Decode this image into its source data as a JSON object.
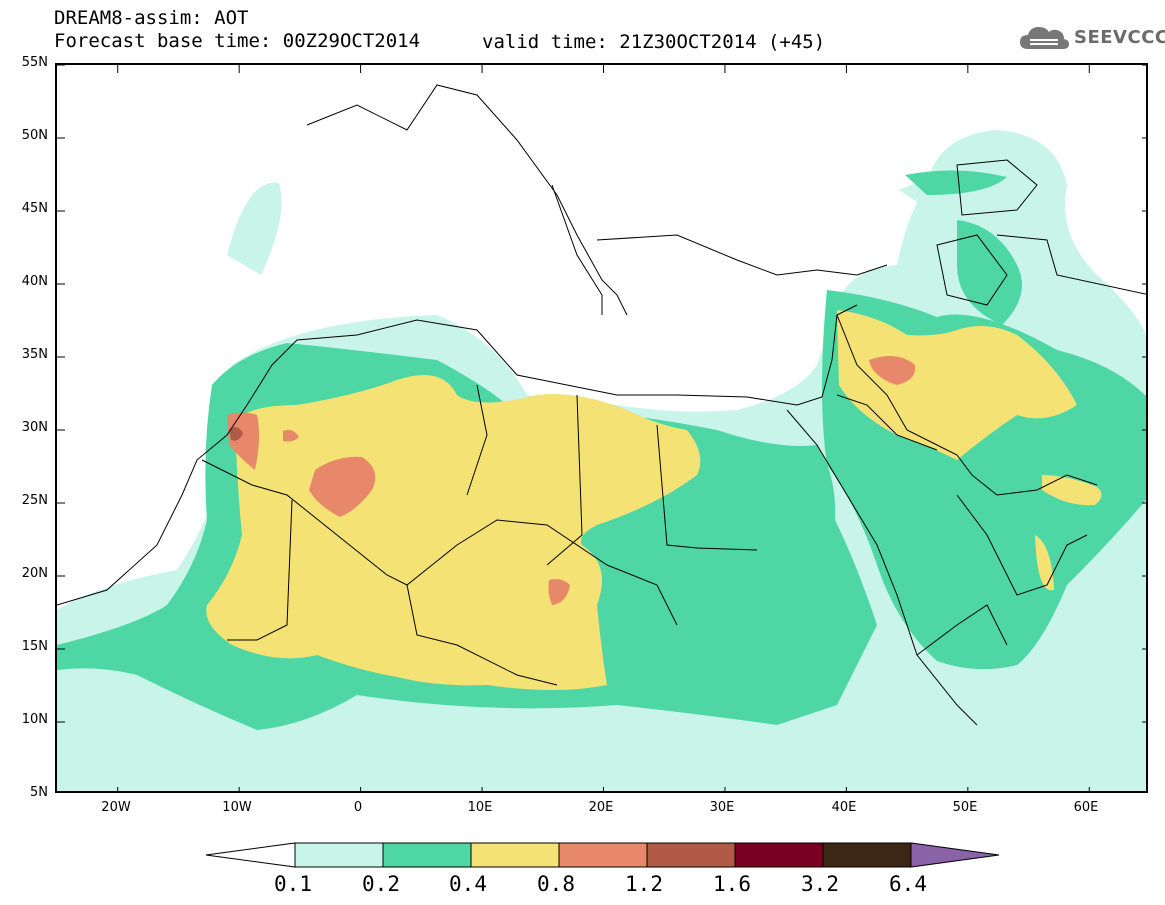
{
  "header": {
    "title": "DREAM8-assim: AOT",
    "base_time": "Forecast base time: 00Z29OCT2014",
    "valid_time": "valid time: 21Z30OCT2014 (+45)"
  },
  "logo": {
    "text": "SEEVCCC",
    "icon": "cloud-icon"
  },
  "map": {
    "lat_labels": [
      "55N",
      "50N",
      "45N",
      "40N",
      "35N",
      "30N",
      "25N",
      "20N",
      "15N",
      "10N",
      "5N"
    ],
    "lon_labels": [
      "20W",
      "10W",
      "0",
      "10E",
      "20E",
      "30E",
      "40E",
      "50E",
      "60E"
    ],
    "lat_range": [
      5,
      55
    ],
    "lon_range": [
      -25,
      65
    ]
  },
  "colorbar": {
    "labels": [
      "0.1",
      "0.2",
      "0.4",
      "0.8",
      "1.2",
      "1.6",
      "3.2",
      "6.4"
    ],
    "colors": [
      "#ffffff",
      "#c8f4ea",
      "#4ed6a4",
      "#f5e275",
      "#e8886a",
      "#b25a48",
      "#7a0022",
      "#3c2616",
      "#8b63a8"
    ]
  }
}
